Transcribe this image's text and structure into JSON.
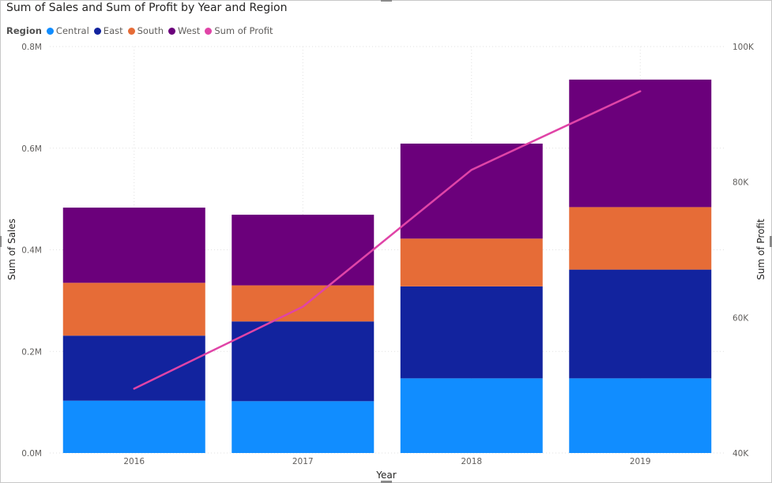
{
  "chart_data": {
    "type": "bar",
    "title": "Sum of Sales and Sum of Profit by Year and Region",
    "legend_title": "Region",
    "xlabel": "Year",
    "ylabel": "Sum of Sales",
    "y2label": "Sum of Profit",
    "categories": [
      "2016",
      "2017",
      "2018",
      "2019"
    ],
    "ylim": [
      0,
      800000
    ],
    "y2lim": [
      40000,
      100000
    ],
    "y_ticks": [
      "0.0M",
      "0.2M",
      "0.4M",
      "0.6M",
      "0.8M"
    ],
    "y_tick_values": [
      0,
      200000,
      400000,
      600000,
      800000
    ],
    "y2_ticks": [
      "40K",
      "60K",
      "80K",
      "100K"
    ],
    "y2_tick_values": [
      40000,
      60000,
      80000,
      100000
    ],
    "stacked": true,
    "grid": true,
    "legend_position": "top-left",
    "series": [
      {
        "name": "Central",
        "color": "#118DFF",
        "values": [
          103000,
          102000,
          147000,
          147000
        ]
      },
      {
        "name": "East",
        "color": "#12239E",
        "values": [
          128000,
          157000,
          181000,
          214000
        ]
      },
      {
        "name": "South",
        "color": "#E66C37",
        "values": [
          104000,
          71000,
          94000,
          123000
        ]
      },
      {
        "name": "West",
        "color": "#6B007B",
        "values": [
          148000,
          139000,
          187000,
          251000
        ]
      }
    ],
    "line_series": {
      "name": "Sum of Profit",
      "color": "#E044A7",
      "axis": "y2",
      "values": [
        49500,
        61600,
        81800,
        93400
      ]
    }
  }
}
